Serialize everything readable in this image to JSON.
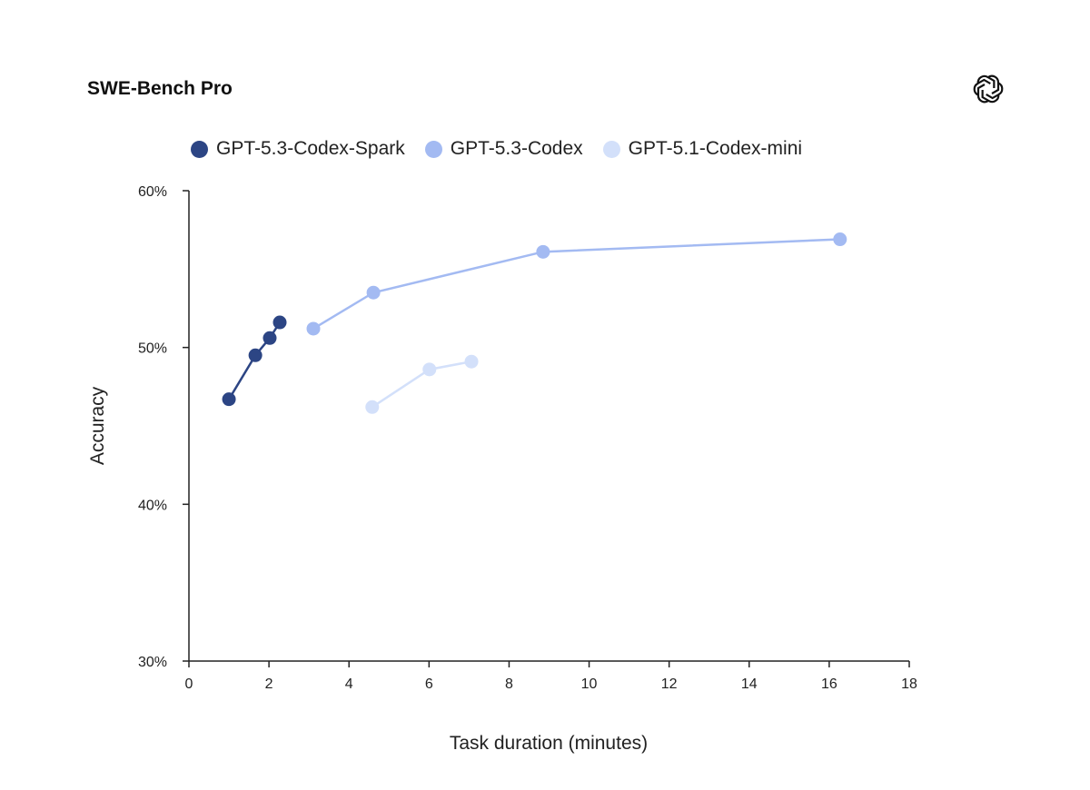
{
  "chart_data": {
    "type": "line",
    "title": "SWE-Bench Pro",
    "xlabel": "Task duration (minutes)",
    "ylabel": "Accuracy",
    "xlim": [
      0,
      18
    ],
    "ylim": [
      30,
      60
    ],
    "xticks": [
      0,
      2,
      4,
      6,
      8,
      10,
      12,
      14,
      16,
      18
    ],
    "yticks": [
      30,
      40,
      50,
      60
    ],
    "ytick_labels": [
      "30%",
      "40%",
      "50%",
      "60%"
    ],
    "grid": false,
    "legend_position": "top",
    "series": [
      {
        "name": "GPT-5.3-Codex-Spark",
        "color": "#2c4584",
        "x": [
          1.0,
          1.66,
          2.02,
          2.27
        ],
        "y": [
          46.7,
          49.5,
          50.6,
          51.6
        ]
      },
      {
        "name": "GPT-5.3-Codex",
        "color": "#a3baf2",
        "x": [
          3.11,
          4.61,
          8.85,
          16.27
        ],
        "y": [
          51.2,
          53.5,
          56.1,
          56.9
        ]
      },
      {
        "name": "GPT-5.1-Codex-mini",
        "color": "#d3e0fa",
        "x": [
          4.58,
          6.01,
          7.06
        ],
        "y": [
          46.2,
          48.6,
          49.1
        ]
      }
    ]
  }
}
